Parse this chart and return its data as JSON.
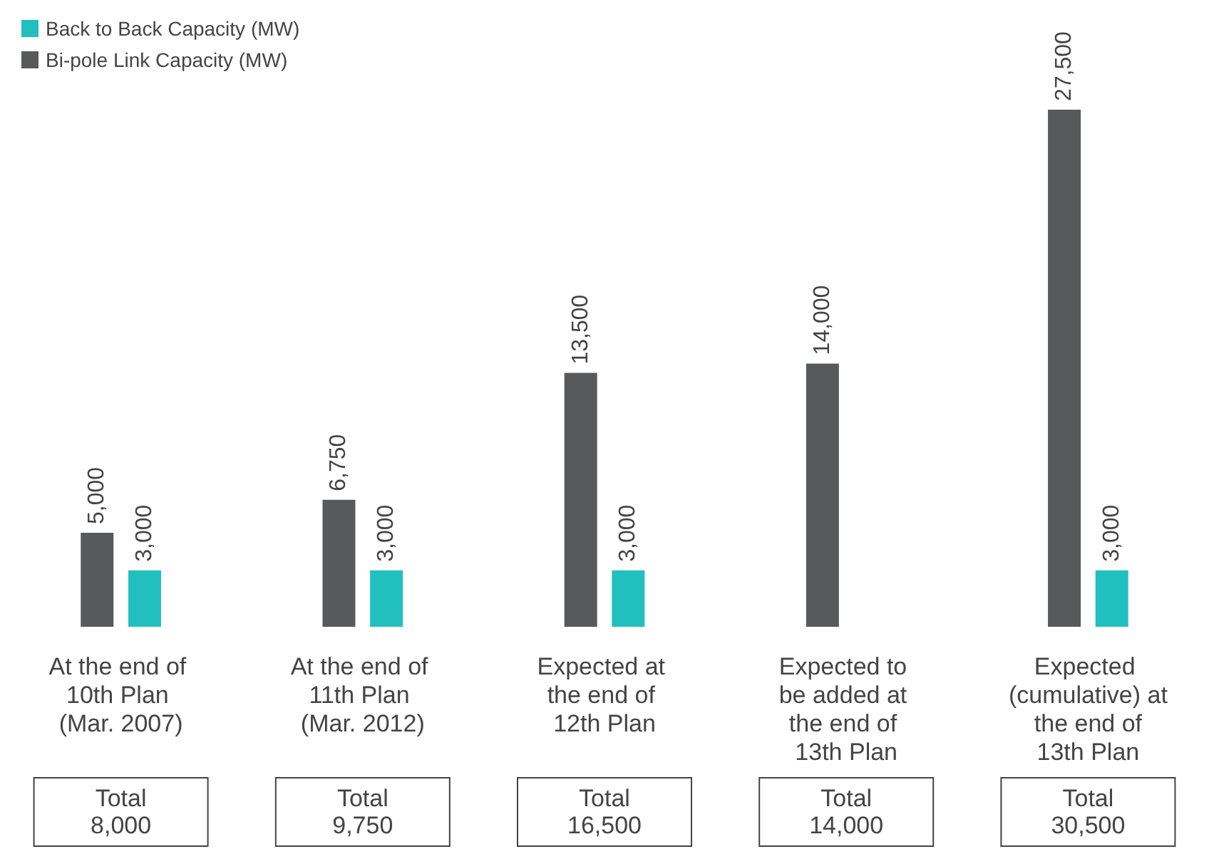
{
  "chart_data": {
    "type": "bar",
    "categories": [
      "At the end of 10th Plan (Mar. 2007)",
      "At the end of 11th Plan (Mar. 2012)",
      "Expected at the end of 12th Plan",
      "Expected to be added at the end of 13th Plan",
      "Expected (cumulative) at the end of 13th Plan"
    ],
    "series": [
      {
        "name": "Bi-pole Link Capacity (MW)",
        "color": "#58595b",
        "values": [
          5000,
          6750,
          13500,
          14000,
          27500
        ],
        "value_labels": [
          "5,000",
          "6,750",
          "13,500",
          "14,000",
          "27,500"
        ]
      },
      {
        "name": "Back to Back Capacity (MW)",
        "color": "#22bfbf",
        "values": [
          3000,
          3000,
          3000,
          null,
          3000
        ],
        "value_labels": [
          "3,000",
          "3,000",
          "3,000",
          null,
          "3,000"
        ]
      }
    ],
    "legend": "top left",
    "annotations": [
      "Total\n8,000",
      "Total\n9,750",
      "Total\n16,500",
      "Total\n14,000",
      "Total\n30,500"
    ]
  }
}
